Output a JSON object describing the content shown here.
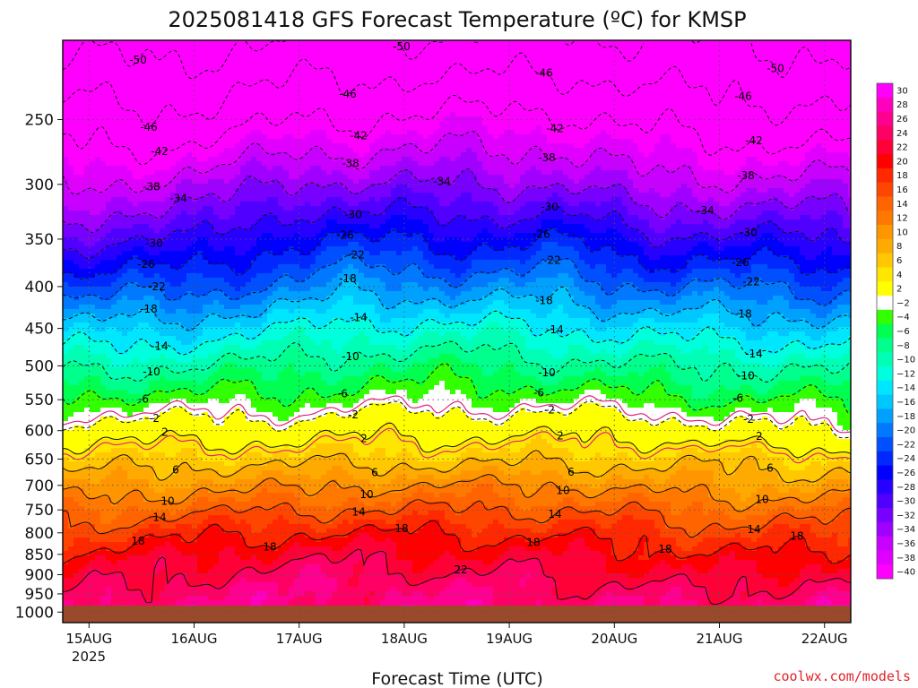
{
  "chart_data": {
    "type": "heatmap",
    "title": "2025081418 GFS Forecast Temperature (ºC) for KMSP",
    "xlabel": "Forecast Time (UTC)",
    "ylabel": "",
    "x_ticks": [
      "15AUG",
      "16AUG",
      "17AUG",
      "18AUG",
      "19AUG",
      "20AUG",
      "21AUG",
      "22AUG"
    ],
    "x_year_label": "2025",
    "x_range": [
      "2025-08-14T18:00Z",
      "2025-08-22T06:00Z"
    ],
    "y_ticks": [
      250,
      300,
      350,
      400,
      450,
      500,
      550,
      600,
      650,
      700,
      750,
      800,
      850,
      900,
      950,
      1000
    ],
    "y_scale": "log",
    "y_range": [
      200,
      1030
    ],
    "y_inverted": true,
    "grid": true,
    "surface_pressure": 982,
    "surface_color": "#9a4a2b",
    "levels": [
      -40,
      -38,
      -36,
      -34,
      -32,
      -30,
      -28,
      -26,
      -24,
      -22,
      -20,
      -18,
      -16,
      -14,
      -12,
      -10,
      -8,
      -6,
      -4,
      -2,
      2,
      4,
      6,
      8,
      10,
      12,
      14,
      16,
      18,
      20,
      22,
      24,
      26,
      28,
      30
    ],
    "colors": [
      "#ff00ff",
      "#e100ff",
      "#c800ff",
      "#a000ff",
      "#7800ff",
      "#5000ff",
      "#2800ff",
      "#0000ff",
      "#0028ff",
      "#0050ff",
      "#0078ff",
      "#00a0ff",
      "#00c8ff",
      "#00e6ff",
      "#00ffdc",
      "#00ffb4",
      "#00ff8c",
      "#00ff50",
      "#32ff00",
      "#ffffff",
      "#ffff00",
      "#ffe600",
      "#ffc800",
      "#ffaa00",
      "#ff9600",
      "#ff7800",
      "#ff6400",
      "#ff4600",
      "#ff2800",
      "#ff0000",
      "#ff0037",
      "#ff0064",
      "#ff0091",
      "#ff00be",
      "#ff00ff"
    ],
    "colorbar_labels": [
      "30",
      "28",
      "26",
      "24",
      "22",
      "20",
      "18",
      "16",
      "14",
      "12",
      "10",
      "8",
      "6",
      "4",
      "2",
      "−2",
      "−4",
      "−6",
      "−8",
      "−10",
      "−12",
      "−14",
      "−16",
      "−18",
      "−20",
      "−22",
      "−24",
      "−26",
      "−28",
      "−30",
      "−32",
      "−34",
      "−36",
      "−38",
      "−40"
    ],
    "isotherms": [
      {
        "temp": -50,
        "labels": [
          "-50",
          "-50",
          "-50"
        ]
      },
      {
        "temp": -46,
        "labels": [
          "-46",
          "-46",
          "-46",
          "-46"
        ]
      },
      {
        "temp": -42,
        "labels": [
          "-42",
          "-42",
          "-42",
          "-42"
        ]
      },
      {
        "temp": -38,
        "labels": [
          "-38",
          "-38",
          "-38",
          "-38"
        ]
      },
      {
        "temp": -34,
        "labels": [
          "-34",
          "-34",
          "-34"
        ]
      },
      {
        "temp": -30,
        "labels": [
          "-30",
          "-30",
          "-30",
          "-30"
        ]
      },
      {
        "temp": -26,
        "labels": [
          "-26",
          "-26",
          "-26",
          "-26"
        ]
      },
      {
        "temp": -22,
        "labels": [
          "-22",
          "-22",
          "-22",
          "-22"
        ]
      },
      {
        "temp": -18,
        "labels": [
          "-18",
          "-18",
          "-18",
          "-18"
        ]
      },
      {
        "temp": -14,
        "labels": [
          "-14",
          "-14",
          "-14",
          "-14"
        ]
      },
      {
        "temp": -10,
        "labels": [
          "-10",
          "-10",
          "-10",
          "-10"
        ]
      },
      {
        "temp": -6,
        "labels": [
          "-6",
          "-6",
          "-6",
          "-6"
        ]
      },
      {
        "temp": -2,
        "labels": [
          "-2",
          "-2",
          "-2",
          "-2"
        ]
      },
      {
        "temp": 2,
        "labels": [
          "2",
          "2",
          "2",
          "2"
        ]
      },
      {
        "temp": 6,
        "labels": [
          "6",
          "6",
          "6",
          "6"
        ]
      },
      {
        "temp": 10,
        "labels": [
          "10",
          "10",
          "10",
          "10"
        ]
      },
      {
        "temp": 14,
        "labels": [
          "14",
          "14",
          "14",
          "14"
        ]
      },
      {
        "temp": 18,
        "labels": [
          "18",
          "18",
          "18",
          "18",
          "18",
          "18"
        ]
      },
      {
        "temp": 22,
        "labels": [
          "22"
        ]
      }
    ],
    "profiles": [
      {
        "time": "2025-08-14T18:00Z",
        "pressures": [
          200,
          250,
          300,
          350,
          400,
          450,
          500,
          550,
          600,
          650,
          700,
          750,
          800,
          850,
          900,
          950,
          982
        ],
        "temps": [
          -52,
          -44,
          -38,
          -31,
          -24,
          -17,
          -11,
          -5,
          0,
          4,
          8,
          12,
          15,
          18,
          20,
          22,
          24
        ]
      },
      {
        "time": "2025-08-16T00:00Z",
        "pressures": [
          200,
          250,
          300,
          350,
          400,
          450,
          500,
          550,
          600,
          650,
          700,
          750,
          800,
          850,
          900,
          950,
          982
        ],
        "temps": [
          -51,
          -45,
          -37,
          -30,
          -23,
          -16,
          -10,
          -5,
          0,
          5,
          9,
          13,
          17,
          20,
          22,
          24,
          25
        ]
      },
      {
        "time": "2025-08-17T00:00Z",
        "pressures": [
          200,
          250,
          300,
          350,
          400,
          450,
          500,
          550,
          600,
          650,
          700,
          750,
          800,
          850,
          900,
          950,
          982
        ],
        "temps": [
          -50,
          -42,
          -33,
          -26,
          -21,
          -14,
          -9,
          -5,
          0,
          5,
          9,
          14,
          18,
          21,
          23,
          24,
          24
        ]
      },
      {
        "time": "2025-08-17T12:00Z",
        "pressures": [
          200,
          250,
          300,
          350,
          400,
          450,
          500,
          550,
          600,
          650,
          700,
          750,
          800,
          850,
          900,
          950,
          982
        ],
        "temps": [
          -49,
          -42,
          -34,
          -26,
          -19,
          -13,
          -8,
          -4,
          1,
          5,
          10,
          14,
          18,
          21,
          23,
          24,
          24
        ]
      },
      {
        "time": "2025-08-18T12:00Z",
        "pressures": [
          200,
          250,
          300,
          350,
          400,
          450,
          500,
          550,
          600,
          650,
          700,
          750,
          800,
          850,
          900,
          950,
          982
        ],
        "temps": [
          -50,
          -41,
          -34,
          -27,
          -20,
          -13,
          -8,
          -4,
          1,
          5,
          10,
          14,
          18,
          20,
          22,
          24,
          25
        ]
      },
      {
        "time": "2025-08-19T12:00Z",
        "pressures": [
          200,
          250,
          300,
          350,
          400,
          450,
          500,
          550,
          600,
          650,
          700,
          750,
          800,
          850,
          900,
          950,
          982
        ],
        "temps": [
          -49,
          -41,
          -34,
          -26,
          -20,
          -14,
          -9,
          -4,
          1,
          5,
          10,
          14,
          17,
          20,
          22,
          23,
          24
        ]
      },
      {
        "time": "2025-08-20T06:00Z",
        "pressures": [
          200,
          250,
          300,
          350,
          400,
          450,
          500,
          550,
          600,
          650,
          700,
          750,
          800,
          850,
          900,
          950,
          982
        ],
        "temps": [
          -50,
          -43,
          -37,
          -29,
          -22,
          -15,
          -10,
          -5,
          1,
          5,
          9,
          13,
          17,
          19,
          21,
          23,
          24
        ]
      },
      {
        "time": "2025-08-21T00:00Z",
        "pressures": [
          200,
          250,
          300,
          350,
          400,
          450,
          500,
          550,
          600,
          650,
          700,
          750,
          800,
          850,
          900,
          950,
          982
        ],
        "temps": [
          -50,
          -44,
          -37,
          -29,
          -22,
          -16,
          -10,
          -6,
          -1,
          5,
          8,
          12,
          15,
          18,
          20,
          22,
          24
        ]
      },
      {
        "time": "2025-08-22T06:00Z",
        "pressures": [
          200,
          250,
          300,
          350,
          400,
          450,
          500,
          550,
          600,
          650,
          700,
          750,
          800,
          850,
          900,
          950,
          982
        ],
        "temps": [
          -51,
          -45,
          -37,
          -30,
          -23,
          -16,
          -11,
          -6,
          -2,
          4,
          8,
          12,
          16,
          19,
          22,
          24,
          25
        ]
      }
    ],
    "credit": "coolwx.com/models"
  }
}
